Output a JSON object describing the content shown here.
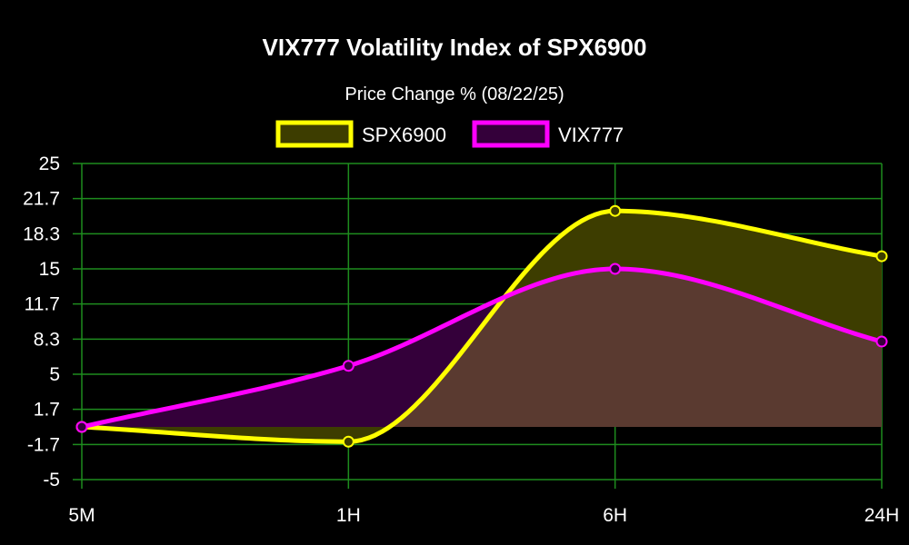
{
  "chart_data": {
    "type": "area",
    "title": "VIX777 Volatility Index of SPX6900",
    "subtitle": "Price Change % (08/22/25)",
    "categories": [
      "5M",
      "1H",
      "6H",
      "24H"
    ],
    "y_ticks": [
      "25",
      "21.7",
      "18.3",
      "15",
      "11.7",
      "8.3",
      "5",
      "1.7",
      "-1.7",
      "-5"
    ],
    "ylim": [
      -5,
      25
    ],
    "grid": true,
    "grid_color": "#1e8c1e",
    "legend_position": "top-center",
    "series": [
      {
        "name": "SPX6900",
        "values": [
          0,
          -1.4,
          20.5,
          16.2
        ],
        "color": "#ffff00",
        "fill": "#3d3d00"
      },
      {
        "name": "VIX777",
        "values": [
          0,
          5.8,
          15.0,
          8.1
        ],
        "color": "#ff00ff",
        "fill": "#34003a"
      }
    ],
    "overlap_fill": "#5a3a30"
  }
}
